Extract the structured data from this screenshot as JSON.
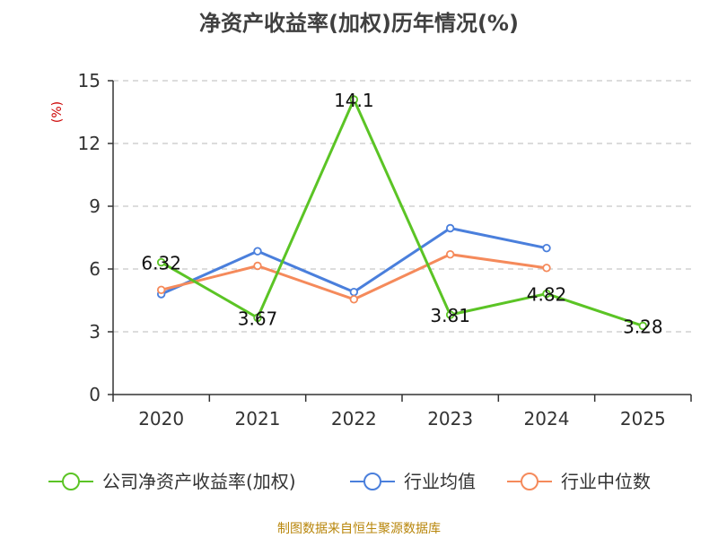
{
  "chart_data": {
    "type": "line",
    "title": "净资产收益率(加权)历年情况(%)",
    "ylabel": "(%)",
    "xlabel": "",
    "categories": [
      "2020",
      "2021",
      "2022",
      "2023",
      "2024",
      "2025"
    ],
    "ylim": [
      0,
      15
    ],
    "yticks": [
      0,
      3,
      6,
      9,
      12,
      15
    ],
    "grid": true,
    "legend_position": "bottom",
    "series": [
      {
        "name": "公司净资产收益率(加权)",
        "color": "#5bc425",
        "values": [
          6.32,
          3.67,
          14.1,
          3.81,
          4.82,
          3.28
        ],
        "labels": [
          "6.32",
          "3.67",
          "14.1",
          "3.81",
          "4.82",
          "3.28"
        ]
      },
      {
        "name": "行业均值",
        "color": "#4a7fdc",
        "values": [
          4.8,
          6.85,
          4.9,
          7.95,
          7.0,
          null
        ]
      },
      {
        "name": "行业中位数",
        "color": "#f58a5b",
        "values": [
          5.0,
          6.15,
          4.55,
          6.7,
          6.05,
          null
        ]
      }
    ],
    "source": "制图数据来自恒生聚源数据库"
  }
}
